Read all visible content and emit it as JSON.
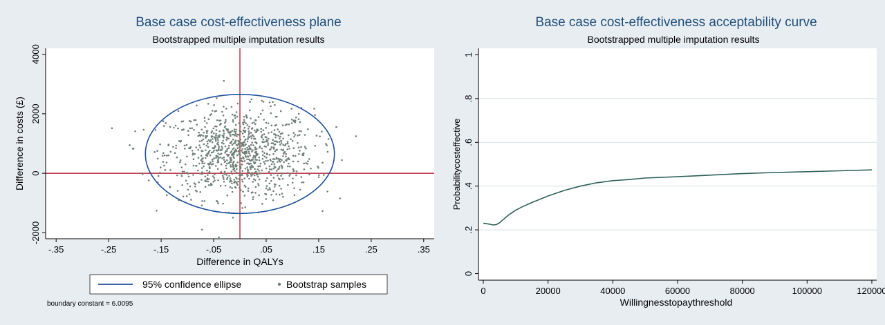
{
  "colors": {
    "background": "#e8edf2",
    "plot_bg": "#ffffff",
    "ellipse": "#1f4e9c",
    "points": "#6f7f78",
    "reference_lines": "#b52a3a",
    "curve": "#2e5f58",
    "grid": "#d4dde3",
    "title": "#1f4e79",
    "text": "#000000"
  },
  "chart_data": [
    {
      "type": "scatter",
      "title": "Base case cost-effectiveness plane",
      "subtitle": "Bootstrapped multiple imputation results",
      "xlabel": "Difference in QALYs",
      "ylabel": "Difference in costs (£)",
      "xlim": [
        -0.37,
        0.37
      ],
      "ylim": [
        -2200,
        4200
      ],
      "x_ticks": [
        -0.35,
        -0.25,
        -0.15,
        -0.05,
        0.05,
        0.15,
        0.25,
        0.35
      ],
      "x_tick_labels": [
        "-.35",
        "-.25",
        "-.15",
        "-.05",
        ".05",
        ".15",
        ".25",
        ".35"
      ],
      "y_ticks": [
        -2000,
        0,
        2000,
        4000
      ],
      "y_tick_labels": [
        "-2000",
        "0",
        "2000",
        "4000"
      ],
      "reference_lines": {
        "x": 0,
        "y": 0
      },
      "ellipse": {
        "center": [
          0,
          650
        ],
        "semi_axis_x": 0.18,
        "semi_axis_y": 2000,
        "label": "95% confidence ellipse"
      },
      "scatter_summary": {
        "label": "Bootstrap samples",
        "n": 1000,
        "mean_x": 0.0,
        "mean_y": 650,
        "sd_x": 0.07,
        "sd_y": 750
      },
      "legend": {
        "position": "bottom",
        "entries": [
          "95% confidence ellipse",
          "Bootstrap samples"
        ]
      },
      "note": "boundary constant = 6.0095",
      "grid": false
    },
    {
      "type": "line",
      "title": "Base case cost-effectiveness acceptability curve",
      "subtitle": "Bootstrapped multiple imputation results",
      "xlabel": "Willingnesstopaythreshold",
      "ylabel": "Probabilitycosteffective",
      "xlim": [
        -1500,
        121500
      ],
      "ylim": [
        -0.03,
        1.03
      ],
      "x_ticks": [
        0,
        20000,
        40000,
        60000,
        80000,
        100000,
        120000
      ],
      "x_tick_labels": [
        "0",
        "20000",
        "40000",
        "60000",
        "80000",
        "100000",
        "120000"
      ],
      "y_ticks": [
        0,
        0.2,
        0.4,
        0.6,
        0.8,
        1
      ],
      "y_tick_labels": [
        "0",
        ".2",
        ".4",
        ".6",
        ".8",
        "1"
      ],
      "grid": true,
      "x": [
        0,
        1000,
        2000,
        3000,
        4000,
        5000,
        6000,
        8000,
        10000,
        12000,
        15000,
        20000,
        25000,
        30000,
        35000,
        40000,
        45000,
        50000,
        60000,
        70000,
        80000,
        90000,
        100000,
        110000,
        120000
      ],
      "y": [
        0.23,
        0.228,
        0.226,
        0.222,
        0.224,
        0.232,
        0.245,
        0.27,
        0.29,
        0.305,
        0.325,
        0.355,
        0.38,
        0.4,
        0.415,
        0.425,
        0.43,
        0.437,
        0.443,
        0.45,
        0.457,
        0.462,
        0.466,
        0.47,
        0.474
      ]
    }
  ]
}
